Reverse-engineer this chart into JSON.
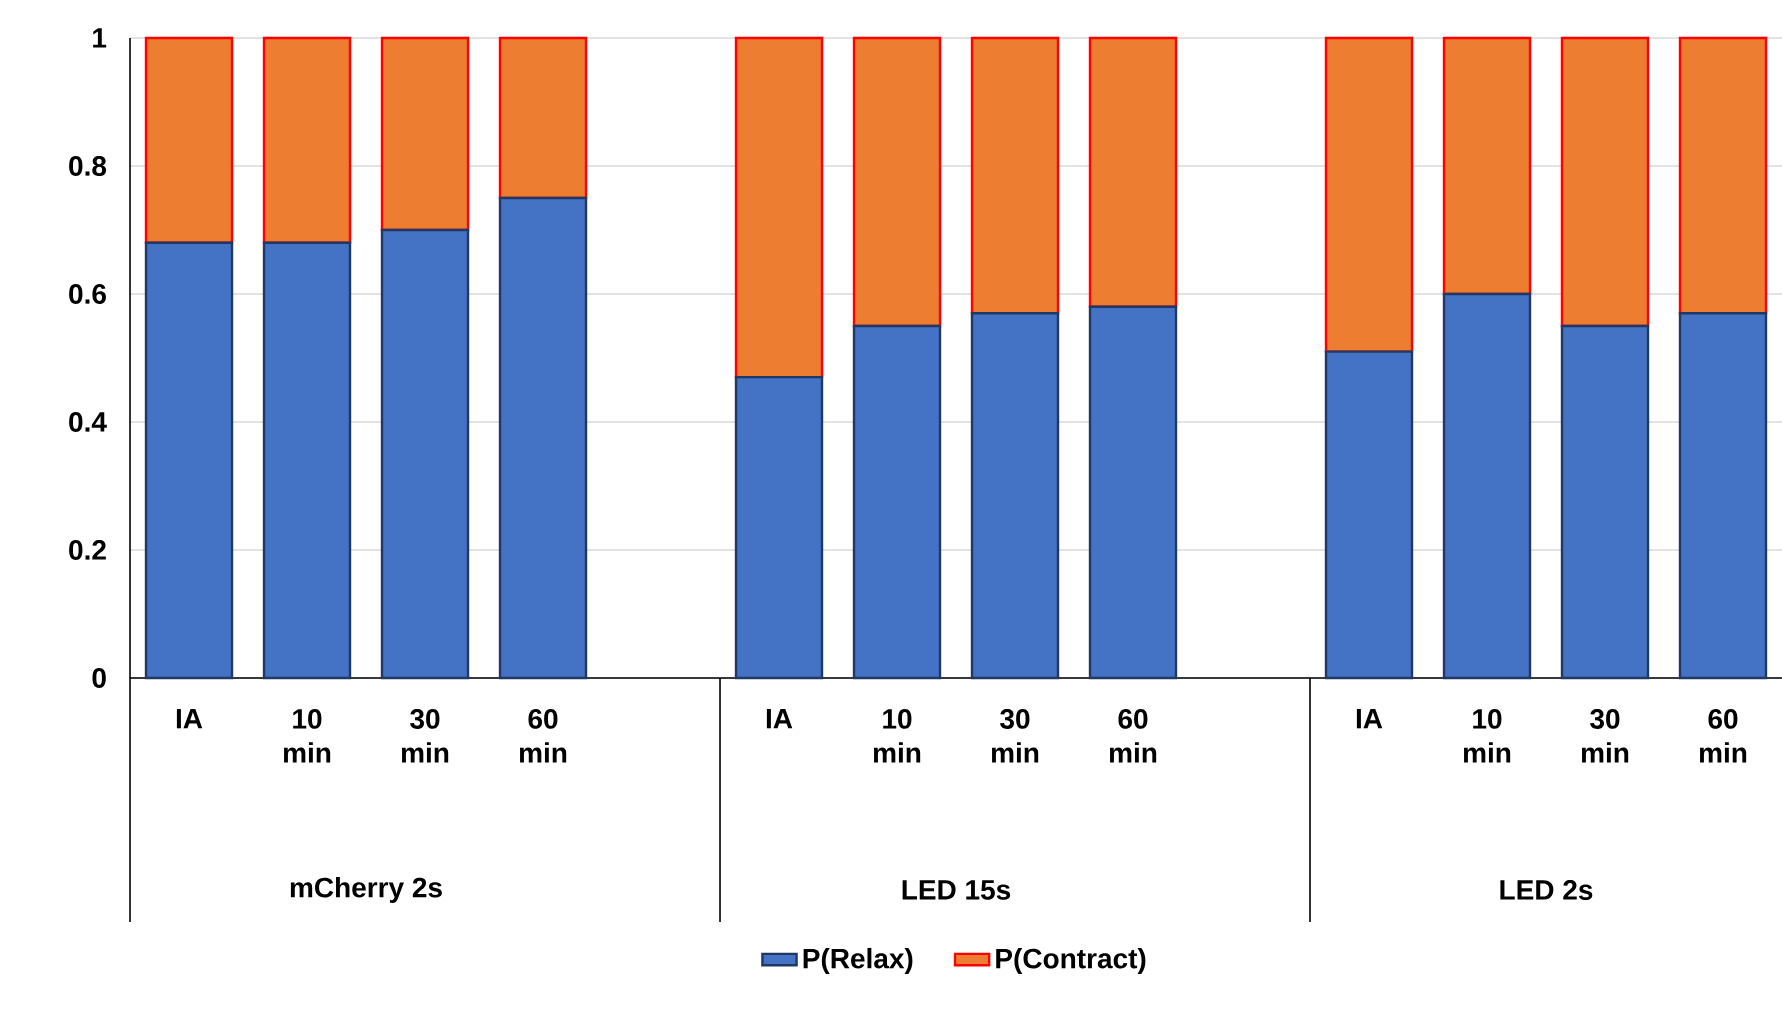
{
  "chart_data": {
    "type": "bar",
    "stacked": true,
    "categories": [
      "IA",
      "10 min",
      "30 min",
      "60 min",
      null,
      "IA",
      "10 min",
      "30 min",
      "60 min",
      null,
      "IA",
      "10 min",
      "30 min",
      "60 min"
    ],
    "series": [
      {
        "name": "P(Relax)",
        "color": "#4472c4",
        "values": [
          0.68,
          0.68,
          0.7,
          0.75,
          null,
          0.47,
          0.55,
          0.57,
          0.58,
          null,
          0.51,
          0.6,
          0.55,
          0.57
        ]
      },
      {
        "name": "P(Contract)",
        "color": "#ed7d31",
        "values": [
          0.32,
          0.32,
          0.3,
          0.25,
          null,
          0.53,
          0.45,
          0.43,
          0.42,
          null,
          0.49,
          0.4,
          0.45,
          0.43
        ]
      }
    ],
    "annotations": [
      "mCherry 2s",
      "LED 15s",
      "LED 2s"
    ],
    "ylim": [
      0,
      1
    ],
    "yticks": [
      0,
      0.2,
      0.4,
      0.6,
      0.8,
      1
    ],
    "grid": "y",
    "legend": "bottom"
  }
}
